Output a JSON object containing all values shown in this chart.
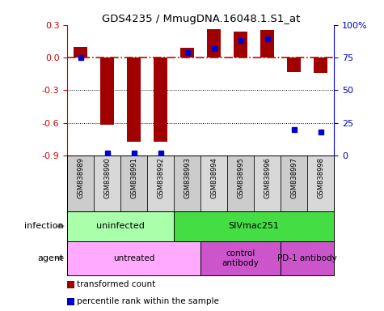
{
  "title": "GDS4235 / MmugDNA.16048.1.S1_at",
  "samples": [
    "GSM838989",
    "GSM838990",
    "GSM838991",
    "GSM838992",
    "GSM838993",
    "GSM838994",
    "GSM838995",
    "GSM838996",
    "GSM838997",
    "GSM838998"
  ],
  "transformed_counts": [
    0.1,
    -0.62,
    -0.77,
    -0.77,
    0.09,
    0.26,
    0.24,
    0.25,
    -0.13,
    -0.14
  ],
  "percentile_ranks": [
    75,
    2,
    2,
    2,
    79,
    82,
    88,
    89,
    20,
    18
  ],
  "ylim_left": [
    -0.9,
    0.3
  ],
  "ylim_right": [
    0,
    100
  ],
  "yticks_left": [
    -0.9,
    -0.6,
    -0.3,
    0.0,
    0.3
  ],
  "yticks_right": [
    0,
    25,
    50,
    75,
    100
  ],
  "ytick_labels_right": [
    "0",
    "25",
    "50",
    "75",
    "100%"
  ],
  "bar_color": "#a00000",
  "dot_color": "#0000cc",
  "hline_color": "#cc0000",
  "infection_groups": [
    {
      "label": "uninfected",
      "start": 0,
      "end": 4,
      "color": "#aaffaa"
    },
    {
      "label": "SIVmac251",
      "start": 4,
      "end": 10,
      "color": "#44dd44"
    }
  ],
  "agent_groups": [
    {
      "label": "untreated",
      "start": 0,
      "end": 5,
      "color": "#ffaaff"
    },
    {
      "label": "control\nantibody",
      "start": 5,
      "end": 8,
      "color": "#cc55cc"
    },
    {
      "label": "PD-1 antibody",
      "start": 8,
      "end": 10,
      "color": "#cc55cc"
    }
  ],
  "legend_entries": [
    "transformed count",
    "percentile rank within the sample"
  ],
  "legend_colors": [
    "#a00000",
    "#0000cc"
  ]
}
